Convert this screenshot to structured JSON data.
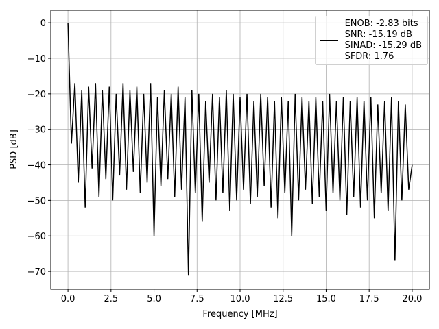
{
  "chart_data": {
    "type": "line",
    "xlabel": "Frequency [MHz]",
    "ylabel": "PSD [dB]",
    "xlim": [
      -1.0,
      21.0
    ],
    "ylim": [
      -75,
      3.5
    ],
    "xticks": [
      {
        "value": 0,
        "label": "0.0"
      },
      {
        "value": 2.5,
        "label": "2.5"
      },
      {
        "value": 5,
        "label": "5.0"
      },
      {
        "value": 7.5,
        "label": "7.5"
      },
      {
        "value": 10,
        "label": "10.0"
      },
      {
        "value": 12.5,
        "label": "12.5"
      },
      {
        "value": 15,
        "label": "15.0"
      },
      {
        "value": 17.5,
        "label": "17.5"
      },
      {
        "value": 20,
        "label": "20.0"
      }
    ],
    "yticks": [
      0,
      {
        "value": -10,
        "label": "−10"
      },
      {
        "value": -20,
        "label": "−20"
      },
      {
        "value": -30,
        "label": "−30"
      },
      {
        "value": -40,
        "label": "−40"
      },
      {
        "value": -50,
        "label": "−50"
      },
      {
        "value": -60,
        "label": "−60"
      },
      {
        "value": -70,
        "label": "−70"
      }
    ],
    "grid": true,
    "legend_loc": "upper right",
    "x": [
      0,
      0.2,
      0.4,
      0.6,
      0.8,
      1,
      1.2,
      1.4,
      1.6,
      1.8,
      2,
      2.2,
      2.4,
      2.6,
      2.8,
      3,
      3.2,
      3.4,
      3.6,
      3.8,
      4,
      4.2,
      4.4,
      4.6,
      4.8,
      5,
      5.2,
      5.4,
      5.6,
      5.8,
      6,
      6.2,
      6.4,
      6.6,
      6.8,
      7,
      7.2,
      7.4,
      7.6,
      7.8,
      8,
      8.2,
      8.4,
      8.6,
      8.8,
      9,
      9.2,
      9.4,
      9.6,
      9.8,
      10,
      10.2,
      10.4,
      10.6,
      10.8,
      11,
      11.2,
      11.4,
      11.6,
      11.8,
      12,
      12.2,
      12.4,
      12.6,
      12.8,
      13,
      13.2,
      13.4,
      13.6,
      13.8,
      14,
      14.2,
      14.4,
      14.6,
      14.8,
      15,
      15.2,
      15.4,
      15.6,
      15.8,
      16,
      16.2,
      16.4,
      16.6,
      16.8,
      17,
      17.2,
      17.4,
      17.6,
      17.8,
      18,
      18.2,
      18.4,
      18.6,
      18.8,
      19,
      19.2,
      19.4,
      19.6,
      19.8,
      20
    ],
    "series": [
      {
        "name": "ENOB: -2.83 bits\nSNR: -15.19 dB\nSINAD: -15.29 dB\nSFDR: 1.76",
        "color": "#000000",
        "values": [
          0,
          -34,
          -17,
          -45,
          -19,
          -52,
          -18,
          -41,
          -17,
          -49,
          -19,
          -44,
          -18,
          -50,
          -20,
          -43,
          -17,
          -47,
          -19,
          -42,
          -18,
          -48,
          -20,
          -45,
          -17,
          -60,
          -21,
          -46,
          -19,
          -44,
          -20,
          -49,
          -18,
          -47,
          -21,
          -71,
          -19,
          -48,
          -20,
          -56,
          -22,
          -45,
          -20,
          -50,
          -21,
          -48,
          -19,
          -53,
          -20,
          -50,
          -21,
          -47,
          -20,
          -51,
          -22,
          -49,
          -20,
          -46,
          -21,
          -52,
          -22,
          -55,
          -21,
          -48,
          -22,
          -60,
          -20,
          -50,
          -21,
          -47,
          -22,
          -51,
          -21,
          -49,
          -22,
          -53,
          -20,
          -48,
          -22,
          -50,
          -21,
          -54,
          -22,
          -49,
          -21,
          -52,
          -22,
          -50,
          -21,
          -55,
          -23,
          -48,
          -22,
          -53,
          -21,
          -67,
          -22,
          -50,
          -23,
          -47,
          -40
        ]
      }
    ]
  }
}
